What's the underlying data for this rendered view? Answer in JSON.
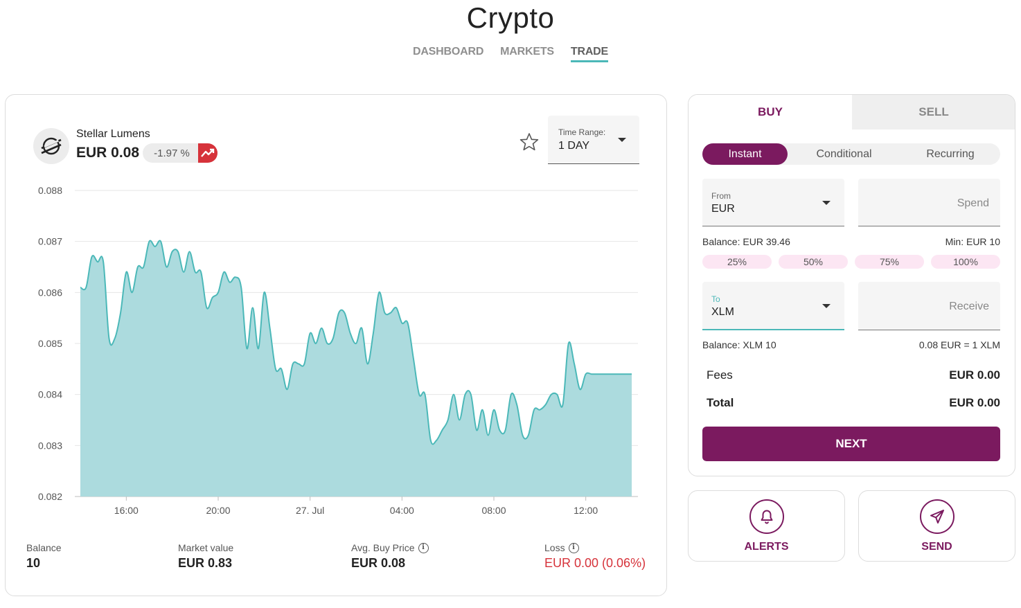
{
  "app": {
    "title": "Crypto"
  },
  "nav": {
    "items": [
      "DASHBOARD",
      "MARKETS",
      "TRADE"
    ],
    "active": "TRADE"
  },
  "asset": {
    "name": "Stellar Lumens",
    "price": "EUR 0.08",
    "change": "-1.97 %",
    "change_direction": "down",
    "icon": "stellar-logo-icon"
  },
  "time_range": {
    "label": "Time Range:",
    "value": "1 DAY"
  },
  "colors": {
    "accent": "#7b1a5f",
    "chart_line": "#4bb8b8",
    "chart_fill": "#acdbde",
    "negative": "#d6323a",
    "pill_bg": "#fce6f3"
  },
  "chart_data": {
    "type": "area",
    "title": "",
    "xlabel": "",
    "ylabel": "",
    "ylim": [
      0.082,
      0.088
    ],
    "y_ticks": [
      "0.088",
      "0.087",
      "0.086",
      "0.085",
      "0.084",
      "0.083",
      "0.082"
    ],
    "x_ticks": [
      "16:00",
      "20:00",
      "27. Jul",
      "04:00",
      "08:00",
      "12:00"
    ],
    "grid": true,
    "x_hours": [
      0,
      0.25,
      0.5,
      0.75,
      1.0,
      1.25,
      1.5,
      1.75,
      2.0,
      2.25,
      2.5,
      2.75,
      3.0,
      3.25,
      3.5,
      3.75,
      4.0,
      4.25,
      4.5,
      4.75,
      5.0,
      5.25,
      5.5,
      5.75,
      6.0,
      6.25,
      6.5,
      6.75,
      7.0,
      7.25,
      7.5,
      7.75,
      8.0,
      8.25,
      8.5,
      8.75,
      9.0,
      9.25,
      9.5,
      9.75,
      10.0,
      10.25,
      10.5,
      10.75,
      11.0,
      11.25,
      11.5,
      11.75,
      12.0,
      12.25,
      12.5,
      12.75,
      13.0,
      13.25,
      13.5,
      13.75,
      14.0,
      14.25,
      14.5,
      14.75,
      15.0,
      15.25,
      15.5,
      15.75,
      16.0,
      16.25,
      16.5,
      16.75,
      17.0,
      17.25,
      17.5,
      17.75,
      18.0,
      18.25,
      18.5,
      18.75,
      19.0,
      19.25,
      19.5,
      19.75,
      20.0,
      20.25,
      20.5,
      20.75,
      21.0,
      21.25,
      21.5,
      21.75,
      22.0,
      22.25,
      22.5,
      22.75,
      23.0,
      23.25,
      23.5,
      23.75,
      24.0
    ],
    "values": [
      0.0861,
      0.0861,
      0.0867,
      0.0866,
      0.0866,
      0.0851,
      0.0851,
      0.0856,
      0.0864,
      0.086,
      0.0865,
      0.0865,
      0.087,
      0.0869,
      0.087,
      0.0865,
      0.0868,
      0.0868,
      0.0864,
      0.0868,
      0.0864,
      0.0864,
      0.0857,
      0.0859,
      0.086,
      0.0864,
      0.0862,
      0.0863,
      0.0861,
      0.0849,
      0.0857,
      0.0849,
      0.086,
      0.0853,
      0.0845,
      0.0845,
      0.0841,
      0.0846,
      0.0846,
      0.0846,
      0.0852,
      0.085,
      0.0853,
      0.085,
      0.0851,
      0.0856,
      0.0856,
      0.0852,
      0.085,
      0.0853,
      0.0846,
      0.0852,
      0.086,
      0.0856,
      0.0856,
      0.0857,
      0.0854,
      0.0854,
      0.0847,
      0.084,
      0.084,
      0.0831,
      0.0831,
      0.0833,
      0.0835,
      0.084,
      0.0835,
      0.084,
      0.084,
      0.0833,
      0.0837,
      0.0832,
      0.0837,
      0.0833,
      0.0833,
      0.084,
      0.0838,
      0.0832,
      0.0832,
      0.0837,
      0.0837,
      0.0838,
      0.084,
      0.084,
      0.0838,
      0.085,
      0.0846,
      0.0841,
      0.0844,
      0.0844,
      0.0844,
      0.0844,
      0.0844,
      0.0844,
      0.0844,
      0.0844,
      0.0844
    ]
  },
  "stats": {
    "balance": {
      "label": "Balance",
      "value": "10"
    },
    "market_value": {
      "label": "Market value",
      "value": "EUR 0.83"
    },
    "avg_buy_price": {
      "label": "Avg. Buy Price",
      "value": "EUR 0.08"
    },
    "loss": {
      "label": "Loss",
      "value": "EUR 0.00 (0.06%)"
    }
  },
  "trade": {
    "tabs": [
      "BUY",
      "SELL"
    ],
    "active_tab": "BUY",
    "order_types": [
      "Instant",
      "Conditional",
      "Recurring"
    ],
    "active_order_type": "Instant",
    "from": {
      "label": "From",
      "value": "EUR"
    },
    "spend_placeholder": "Spend",
    "from_balance": "Balance: EUR 39.46",
    "min": "Min: EUR 10",
    "percent_buttons": [
      "25%",
      "50%",
      "75%",
      "100%"
    ],
    "to": {
      "label": "To",
      "value": "XLM"
    },
    "receive_placeholder": "Receive",
    "to_balance": "Balance:  XLM 10",
    "rate": "0.08 EUR = 1 XLM",
    "fees": {
      "label": "Fees",
      "value": "EUR 0.00"
    },
    "total": {
      "label": "Total",
      "value": "EUR 0.00"
    },
    "next_label": "NEXT"
  },
  "actions": {
    "alerts": {
      "label": "ALERTS",
      "icon": "bell-icon"
    },
    "send": {
      "label": "SEND",
      "icon": "send-icon"
    }
  }
}
